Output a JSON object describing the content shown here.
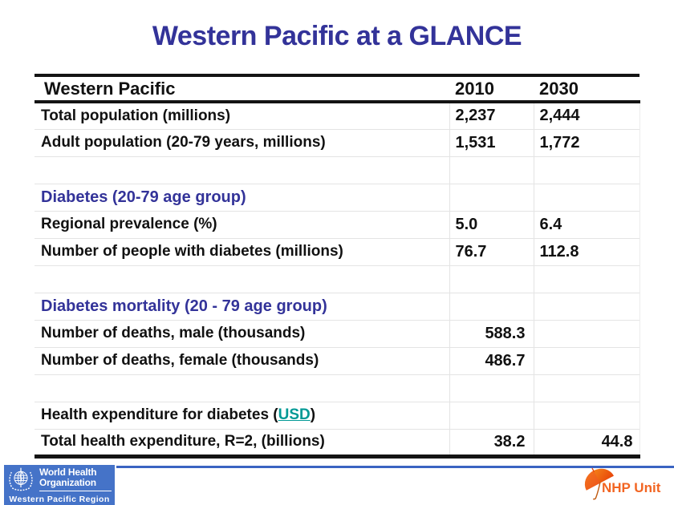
{
  "slide": {
    "title": "Western Pacific at a GLANCE"
  },
  "table": {
    "header": {
      "label": "Western Pacific",
      "col_2010": "2010",
      "col_2030": "2030"
    },
    "rows": [
      {
        "type": "data",
        "label": "Total population (millions)",
        "col1": "2,237",
        "col2": "2,444",
        "align": "left"
      },
      {
        "type": "data",
        "label": "Adult population (20-79 years, millions)",
        "col1": "1,531",
        "col2": "1,772",
        "align": "left"
      },
      {
        "type": "blank",
        "label": "",
        "col1": "",
        "col2": "",
        "align": "left"
      },
      {
        "type": "section",
        "label": "Diabetes (20-79 age group)",
        "col1": "",
        "col2": "",
        "align": "left"
      },
      {
        "type": "data",
        "label": "Regional prevalence (%)",
        "col1": "5.0",
        "col2": "6.4",
        "align": "left"
      },
      {
        "type": "data",
        "label": "Number of people with diabetes (millions)",
        "col1": "76.7",
        "col2": "112.8",
        "align": "left"
      },
      {
        "type": "blank",
        "label": "",
        "col1": "",
        "col2": "",
        "align": "left"
      },
      {
        "type": "section",
        "label": "Diabetes mortality (20 - 79 age group)",
        "col1": "",
        "col2": "",
        "align": "left"
      },
      {
        "type": "data",
        "label": "Number of deaths, male (thousands)",
        "col1": "588.3",
        "col2": "",
        "align": "right"
      },
      {
        "type": "data",
        "label": "Number of deaths, female (thousands)",
        "col1": "486.7",
        "col2": "",
        "align": "right"
      },
      {
        "type": "blank",
        "label": "",
        "col1": "",
        "col2": "",
        "align": "left"
      },
      {
        "type": "data",
        "label_parts": {
          "prefix": "Health expenditure for diabetes (",
          "link": "USD",
          "suffix": ")"
        },
        "label": "Health expenditure for diabetes (USD)",
        "col1": "",
        "col2": "",
        "align": "left"
      },
      {
        "type": "data",
        "label": "Total health expenditure, R=2, (billions)",
        "col1": "38.2",
        "col2": "44.8",
        "align": "right"
      }
    ]
  },
  "footer": {
    "who_logo": {
      "line1": "World Health",
      "line2": "Organization",
      "region": "Western Pacific Region"
    },
    "nhp": {
      "label": "NHP Unit"
    }
  },
  "colors": {
    "title_blue": "#333399",
    "section_blue": "#333399",
    "usd_link_teal": "#009995",
    "who_block_blue": "#4573c8",
    "footer_line_blue": "#3a63c2",
    "nhp_orange": "#f26522",
    "table_border_black": "#141414",
    "gridline_gray": "#e4e4e4"
  }
}
